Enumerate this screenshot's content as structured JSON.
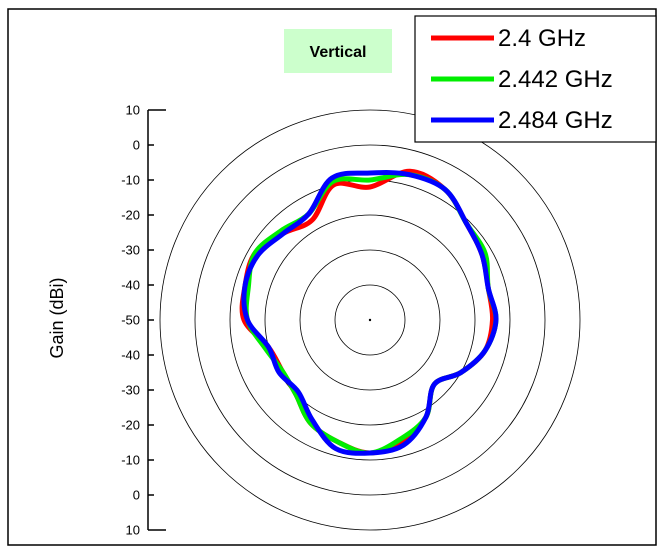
{
  "chart_data": {
    "type": "polar",
    "title": "Vertical",
    "ylabel": "Gain (dBi)",
    "rlim": [
      -50,
      10
    ],
    "ring_values": [
      -40,
      -30,
      -20,
      -10,
      0,
      10
    ],
    "axis_tick_labels": [
      "10",
      "0",
      "-10",
      "-20",
      "-30",
      "-40",
      "-50",
      "-40",
      "-30",
      "-20",
      "-10",
      "0",
      "10"
    ],
    "legend_position": "top-right",
    "angle_unit": "degrees",
    "angle_convention": "0 = top, clockwise",
    "series": [
      {
        "name": "2.4 GHz",
        "color": "#ff0000",
        "angles": [
          0,
          15,
          30,
          45,
          60,
          75,
          90,
          105,
          120,
          135,
          150,
          165,
          180,
          195,
          210,
          225,
          240,
          255,
          270,
          285,
          300,
          315,
          330,
          345
        ],
        "values": [
          -12,
          -6,
          -7,
          -11,
          -13,
          -15,
          -15,
          -16,
          -20,
          -24,
          -18,
          -14,
          -12,
          -14,
          -16,
          -20,
          -21,
          -20,
          -14,
          -13,
          -12,
          -15,
          -17,
          -10
        ]
      },
      {
        "name": "2.442 GHz",
        "color": "#00ee00",
        "angles": [
          0,
          15,
          30,
          45,
          60,
          75,
          90,
          105,
          120,
          135,
          150,
          165,
          180,
          195,
          210,
          225,
          240,
          255,
          270,
          285,
          300,
          315,
          330,
          345
        ],
        "values": [
          -10,
          -7,
          -7,
          -11,
          -12,
          -15,
          -14,
          -16,
          -20,
          -24,
          -18,
          -15,
          -12,
          -14,
          -16,
          -20,
          -21,
          -19,
          -15,
          -14,
          -12,
          -14,
          -15,
          -9
        ]
      },
      {
        "name": "2.484 GHz",
        "color": "#0000ff",
        "angles": [
          0,
          15,
          30,
          45,
          60,
          75,
          90,
          105,
          120,
          135,
          150,
          165,
          180,
          195,
          210,
          225,
          240,
          255,
          270,
          285,
          300,
          315,
          330,
          345
        ],
        "values": [
          -8,
          -7,
          -7,
          -11,
          -13,
          -15,
          -14,
          -16,
          -20,
          -24,
          -18,
          -13,
          -12,
          -12,
          -17,
          -21,
          -20,
          -20,
          -15,
          -13,
          -13,
          -15,
          -15,
          -8
        ]
      }
    ]
  }
}
